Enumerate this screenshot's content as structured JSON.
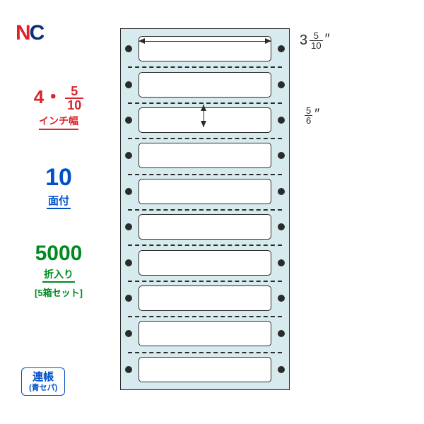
{
  "logo": {
    "n": "N",
    "c": "C"
  },
  "colors": {
    "red": "#d9252b",
    "blue": "#0050c8",
    "green": "#008a1e",
    "bgsheet": "#d7ebef",
    "line": "#2b2b2b"
  },
  "width_spec": {
    "whole": "4",
    "sep": "・",
    "num": "5",
    "den": "10",
    "label": "インチ幅"
  },
  "faces": {
    "value": "10",
    "unit": "面付"
  },
  "count": {
    "value": "5000",
    "unit": "折入り",
    "sub": "[5箱セット]"
  },
  "badge": {
    "main": "連帳",
    "sub": "(青セパ)"
  },
  "sheet": {
    "rows": 10
  },
  "dim_width": {
    "whole": "3",
    "num": "5",
    "den": "10",
    "inch": "″"
  },
  "dim_height": {
    "num": "5",
    "den": "6",
    "inch": "″"
  }
}
